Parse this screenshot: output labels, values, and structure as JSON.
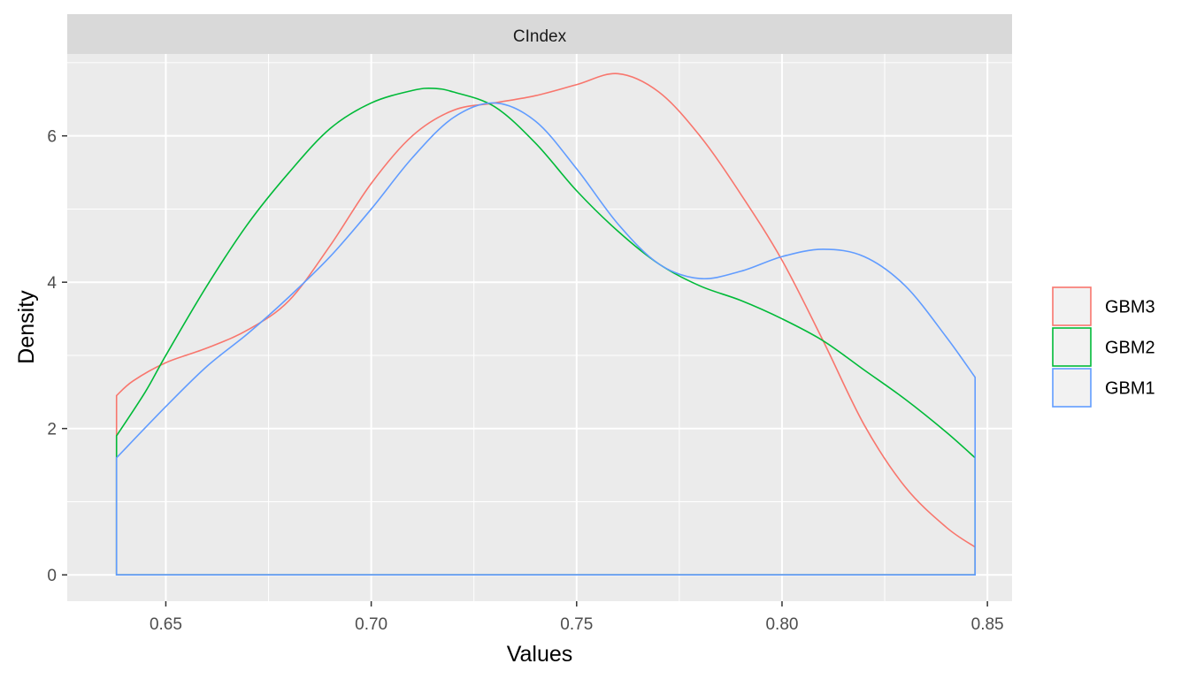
{
  "chart_data": {
    "type": "line",
    "panel_title": "CIndex",
    "xlabel": "Values",
    "ylabel": "Density",
    "xlim": [
      0.626,
      0.856
    ],
    "ylim": [
      -0.36,
      7.12
    ],
    "x_ticks": [
      0.65,
      0.7,
      0.75,
      0.8,
      0.85
    ],
    "x_tick_labels": [
      "0.65",
      "0.70",
      "0.75",
      "0.80",
      "0.85"
    ],
    "y_ticks": [
      0,
      2,
      4,
      6
    ],
    "y_tick_labels": [
      "0",
      "2",
      "4",
      "6"
    ],
    "grid": true,
    "legend_position": "right",
    "legend": [
      {
        "name": "GBM3",
        "color": "#F8766D"
      },
      {
        "name": "GBM2",
        "color": "#00BA38"
      },
      {
        "name": "GBM1",
        "color": "#619CFF"
      }
    ],
    "series": [
      {
        "name": "GBM3",
        "color": "#F8766D",
        "x": [
          0.638,
          0.642,
          0.65,
          0.66,
          0.67,
          0.68,
          0.69,
          0.7,
          0.71,
          0.72,
          0.73,
          0.74,
          0.75,
          0.76,
          0.77,
          0.78,
          0.79,
          0.8,
          0.81,
          0.82,
          0.83,
          0.84,
          0.847
        ],
        "y": [
          2.45,
          2.65,
          2.9,
          3.1,
          3.35,
          3.75,
          4.5,
          5.35,
          6.0,
          6.35,
          6.45,
          6.55,
          6.7,
          6.85,
          6.6,
          6.0,
          5.2,
          4.3,
          3.2,
          2.05,
          1.2,
          0.65,
          0.38
        ]
      },
      {
        "name": "GBM2",
        "color": "#00BA38",
        "x": [
          0.638,
          0.645,
          0.65,
          0.66,
          0.67,
          0.68,
          0.69,
          0.7,
          0.71,
          0.715,
          0.72,
          0.73,
          0.74,
          0.75,
          0.76,
          0.77,
          0.78,
          0.79,
          0.8,
          0.81,
          0.82,
          0.83,
          0.84,
          0.847
        ],
        "y": [
          1.9,
          2.5,
          3.0,
          3.95,
          4.8,
          5.5,
          6.1,
          6.45,
          6.62,
          6.65,
          6.6,
          6.4,
          5.9,
          5.25,
          4.7,
          4.25,
          3.95,
          3.75,
          3.5,
          3.2,
          2.8,
          2.4,
          1.95,
          1.6
        ]
      },
      {
        "name": "GBM1",
        "color": "#619CFF",
        "x": [
          0.638,
          0.65,
          0.66,
          0.67,
          0.68,
          0.69,
          0.7,
          0.71,
          0.72,
          0.73,
          0.74,
          0.75,
          0.76,
          0.77,
          0.78,
          0.79,
          0.8,
          0.81,
          0.82,
          0.83,
          0.84,
          0.847
        ],
        "y": [
          1.6,
          2.3,
          2.85,
          3.3,
          3.8,
          4.35,
          5.0,
          5.7,
          6.25,
          6.45,
          6.2,
          5.55,
          4.8,
          4.25,
          4.05,
          4.15,
          4.35,
          4.45,
          4.35,
          3.95,
          3.25,
          2.7
        ]
      }
    ]
  }
}
